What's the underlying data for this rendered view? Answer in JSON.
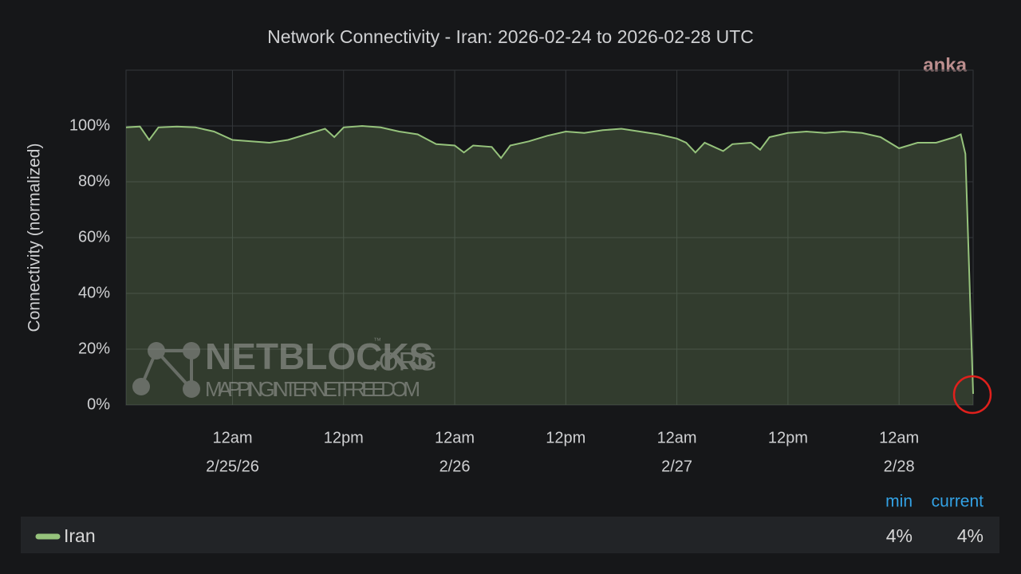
{
  "chart_data": {
    "type": "area",
    "title": "Network Connectivity - Iran: 2026-02-24 to 2026-02-28 UTC",
    "y_label": "Connectivity (normalized)",
    "x": [
      "2026-02-24T12:30",
      "2026-02-24T14:00",
      "2026-02-24T15:00",
      "2026-02-24T16:00",
      "2026-02-24T18:00",
      "2026-02-24T20:00",
      "2026-02-24T22:00",
      "2026-02-25T00:00",
      "2026-02-25T02:00",
      "2026-02-25T04:00",
      "2026-02-25T06:00",
      "2026-02-25T08:00",
      "2026-02-25T10:00",
      "2026-02-25T11:00",
      "2026-02-25T12:00",
      "2026-02-25T14:00",
      "2026-02-25T16:00",
      "2026-02-25T18:00",
      "2026-02-25T20:00",
      "2026-02-25T22:00",
      "2026-02-26T00:00",
      "2026-02-26T01:00",
      "2026-02-26T02:00",
      "2026-02-26T04:00",
      "2026-02-26T05:00",
      "2026-02-26T06:00",
      "2026-02-26T08:00",
      "2026-02-26T10:00",
      "2026-02-26T12:00",
      "2026-02-26T14:00",
      "2026-02-26T16:00",
      "2026-02-26T18:00",
      "2026-02-26T20:00",
      "2026-02-26T22:00",
      "2026-02-27T00:00",
      "2026-02-27T01:00",
      "2026-02-27T02:00",
      "2026-02-27T03:00",
      "2026-02-27T05:00",
      "2026-02-27T06:00",
      "2026-02-27T08:00",
      "2026-02-27T09:00",
      "2026-02-27T10:00",
      "2026-02-27T12:00",
      "2026-02-27T14:00",
      "2026-02-27T16:00",
      "2026-02-27T18:00",
      "2026-02-27T20:00",
      "2026-02-27T22:00",
      "2026-02-28T00:00",
      "2026-02-28T02:00",
      "2026-02-28T04:00",
      "2026-02-28T06:00",
      "2026-02-28T06:40",
      "2026-02-28T07:10",
      "2026-02-28T08:00"
    ],
    "series": [
      {
        "name": "Iran",
        "color": "#96c37c",
        "values": [
          99.5,
          99.8,
          95,
          99.5,
          99.8,
          99.5,
          98,
          95,
          94.5,
          94,
          95,
          97,
          99,
          96,
          99.5,
          100,
          99.5,
          98,
          97,
          93.5,
          93,
          90.5,
          93,
          92.5,
          88.5,
          93,
          94.5,
          96.5,
          98,
          97.5,
          98.5,
          99,
          98,
          97,
          95.5,
          94,
          90.5,
          94,
          91,
          93.5,
          94,
          91.5,
          96,
          97.5,
          98,
          97.5,
          98,
          97.5,
          96,
          92,
          94,
          94,
          96,
          97,
          90,
          4
        ],
        "stats": [
          4,
          4
        ],
        "stats_labels": [
          "4%",
          "4%"
        ]
      }
    ],
    "stats_headers": [
      "min",
      "current"
    ],
    "xlim": [
      "2026-02-24T12:30",
      "2026-02-28T08:00"
    ],
    "xticks": [
      {
        "value": "2026-02-25T00:00",
        "label": [
          "12am",
          "2/25/26"
        ]
      },
      {
        "value": "2026-02-25T12:00",
        "label": [
          "12pm"
        ]
      },
      {
        "value": "2026-02-26T00:00",
        "label": [
          "12am",
          "2/26"
        ]
      },
      {
        "value": "2026-02-26T12:00",
        "label": [
          "12pm"
        ]
      },
      {
        "value": "2026-02-27T00:00",
        "label": [
          "12am",
          "2/27"
        ]
      },
      {
        "value": "2026-02-27T12:00",
        "label": [
          "12pm"
        ]
      },
      {
        "value": "2026-02-28T00:00",
        "label": [
          "12am",
          "2/28"
        ]
      }
    ],
    "ylim": [
      0,
      120
    ],
    "yticks": [
      {
        "value": 0,
        "label": "0%"
      },
      {
        "value": 20,
        "label": "20%"
      },
      {
        "value": 40,
        "label": "40%"
      },
      {
        "value": 60,
        "label": "60%"
      },
      {
        "value": 80,
        "label": "80%"
      },
      {
        "value": 100,
        "label": "100%"
      }
    ],
    "grid": true,
    "watermarks": {
      "source": "anka",
      "brand": "NETBLOCKS",
      "brand_suffix": ".ORG",
      "trademark": "™",
      "tagline": "MAPPING INTERNET FREEDOM"
    }
  }
}
